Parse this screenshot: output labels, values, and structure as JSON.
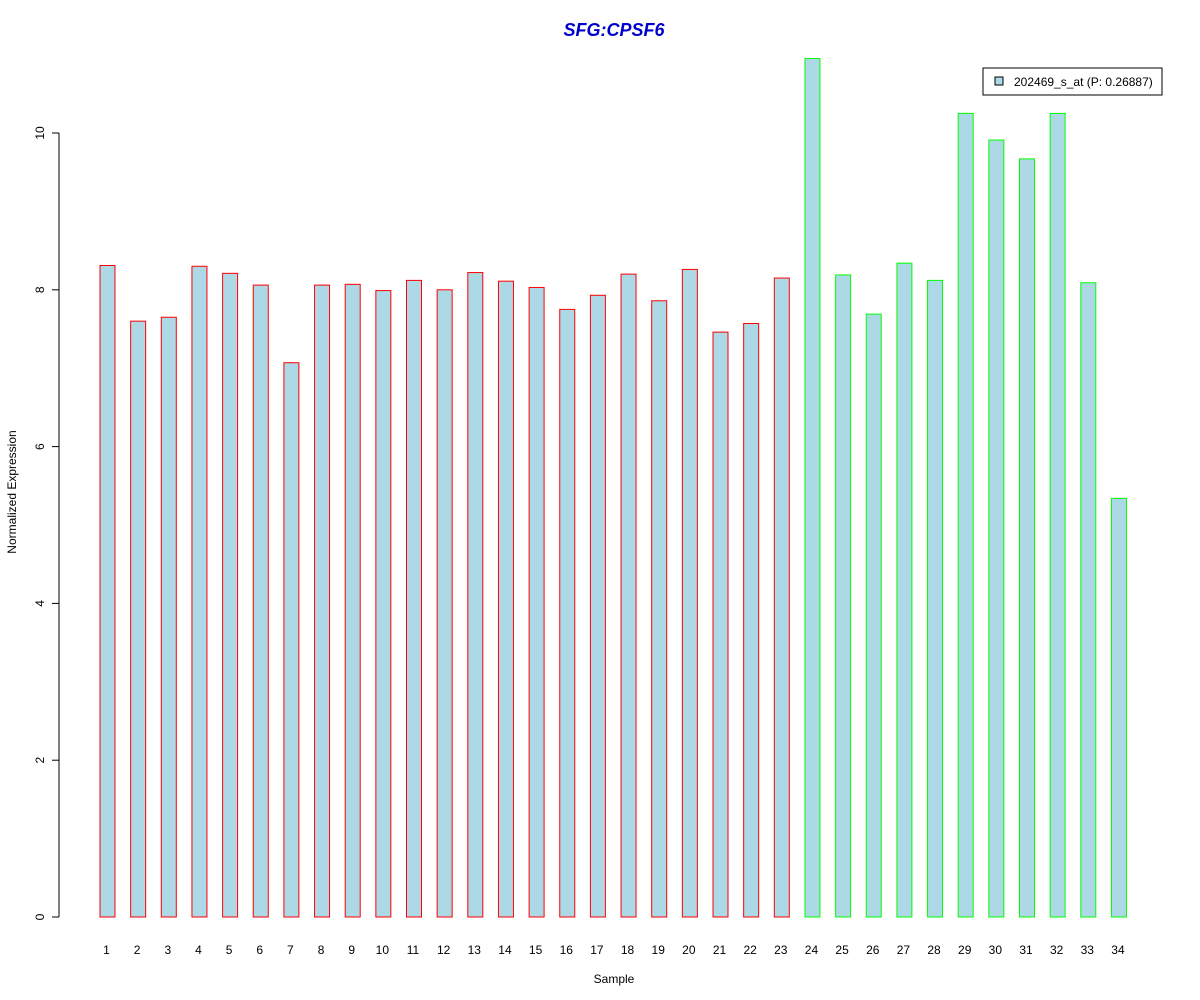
{
  "chart_data": {
    "type": "bar",
    "title": "SFG:CPSF6",
    "xlabel": "Sample",
    "ylabel": "Normalized Expression",
    "categories": [
      "1",
      "2",
      "3",
      "4",
      "5",
      "6",
      "7",
      "8",
      "9",
      "10",
      "11",
      "12",
      "13",
      "14",
      "15",
      "16",
      "17",
      "18",
      "19",
      "20",
      "21",
      "22",
      "23",
      "24",
      "25",
      "26",
      "27",
      "28",
      "29",
      "30",
      "31",
      "32",
      "33",
      "34"
    ],
    "yticks": [
      "0",
      "2",
      "4",
      "6",
      "8",
      "10"
    ],
    "ylim": [
      0,
      10.95
    ],
    "series": [
      {
        "name": "202469_s_at (P: 0.26887)",
        "values": [
          8.31,
          7.6,
          7.65,
          8.3,
          8.21,
          8.06,
          7.07,
          8.06,
          8.07,
          7.99,
          8.12,
          8.0,
          8.22,
          8.11,
          8.03,
          7.75,
          7.93,
          8.2,
          7.86,
          8.26,
          7.46,
          7.57,
          8.15,
          10.95,
          8.19,
          7.69,
          8.34,
          8.12,
          10.25,
          9.91,
          9.67,
          10.25,
          8.09,
          5.34
        ],
        "group": [
          "a",
          "a",
          "a",
          "a",
          "a",
          "a",
          "a",
          "a",
          "a",
          "a",
          "a",
          "a",
          "a",
          "a",
          "a",
          "a",
          "a",
          "a",
          "a",
          "a",
          "a",
          "a",
          "a",
          "b",
          "b",
          "b",
          "b",
          "b",
          "b",
          "b",
          "b",
          "b",
          "b",
          "b"
        ]
      }
    ],
    "legend": {
      "position": "top-right",
      "label": "202469_s_at (P: 0.26887)"
    },
    "grid": false,
    "colors": {
      "bar_fill": "#add8e6",
      "group_a_border": "#ff0000",
      "group_b_border": "#00ff00",
      "title": "#0000cd",
      "axis": "#000000"
    }
  }
}
